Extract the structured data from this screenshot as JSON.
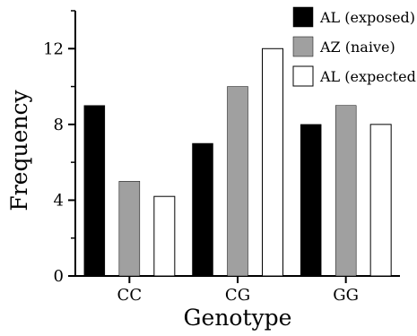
{
  "chart_data": {
    "type": "bar",
    "categories": [
      "CC",
      "CG",
      "GG"
    ],
    "series": [
      {
        "name": "AL (exposed)",
        "values": [
          9,
          7,
          8
        ],
        "color": "#000000"
      },
      {
        "name": "AZ (naive)",
        "values": [
          5,
          10,
          9
        ],
        "color": "#a0a0a0"
      },
      {
        "name": "AL (expected)",
        "values": [
          4.2,
          12,
          8
        ],
        "color": "#ffffff"
      }
    ],
    "xlabel": "Genotype",
    "ylabel": "Frequency",
    "ylim": [
      0,
      14
    ],
    "yticks": [
      0,
      4,
      8,
      12
    ],
    "y_minor_ticks": [
      2,
      6,
      10,
      14
    ],
    "grid": false,
    "legend_position": "top-right"
  }
}
